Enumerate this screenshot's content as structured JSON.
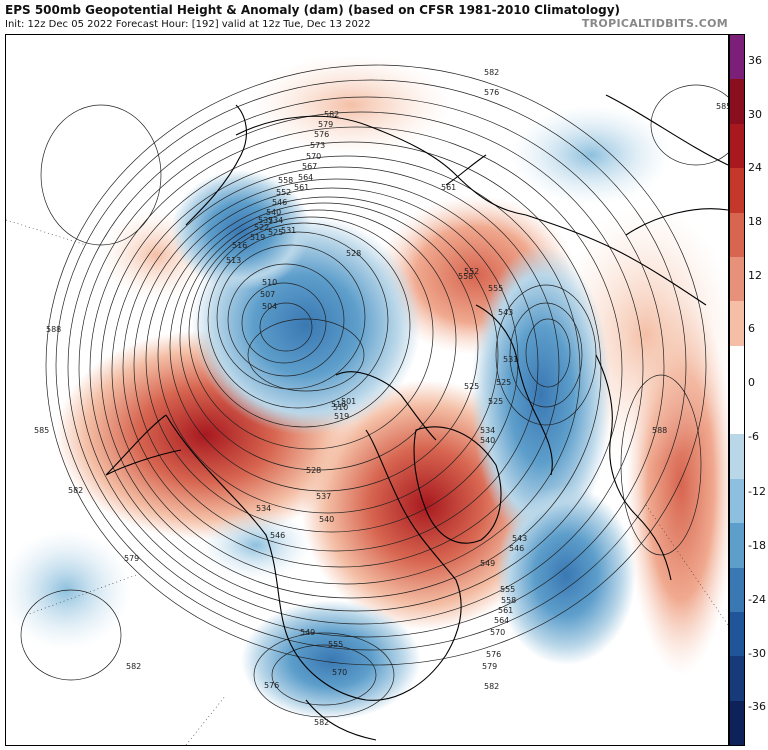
{
  "header": {
    "title": "EPS 500mb Geopotential Height & Anomaly (dam) (based on CFSR 1981-2010 Climatology)",
    "subtitle": "Init: 12z Dec 05 2022   Forecast Hour: [192]   valid at 12z Tue, Dec 13 2022",
    "credit": "TROPICALTIDBITS.COM"
  },
  "colorbar": {
    "ticks": [
      "36",
      "30",
      "24",
      "18",
      "12",
      "6",
      "0",
      "-6",
      "-12",
      "-18",
      "-24",
      "-30",
      "-36"
    ],
    "colors": [
      "#7b1f78",
      "#8a0f1e",
      "#a8191f",
      "#c4382b",
      "#d76550",
      "#e8917a",
      "#f4bfa6",
      "#ffffff",
      "#ffffff",
      "#bad7e9",
      "#8dc0de",
      "#5d9ecb",
      "#3a78b3",
      "#21559a",
      "#173b7a",
      "#0c2258"
    ]
  },
  "map": {
    "contour_labels": [
      "582",
      "579",
      "576",
      "573",
      "570",
      "567",
      "564",
      "561",
      "558",
      "552",
      "546",
      "540",
      "537",
      "534",
      "531",
      "528",
      "525",
      "522",
      "519",
      "516",
      "513",
      "510",
      "507",
      "504",
      "501",
      "585",
      "588",
      "549",
      "543",
      "555"
    ],
    "warm_anomaly_color": "#c6312a",
    "cold_anomaly_color": "#2f72ad",
    "land_outline_color": "#000000",
    "contour_color": "#222222"
  }
}
